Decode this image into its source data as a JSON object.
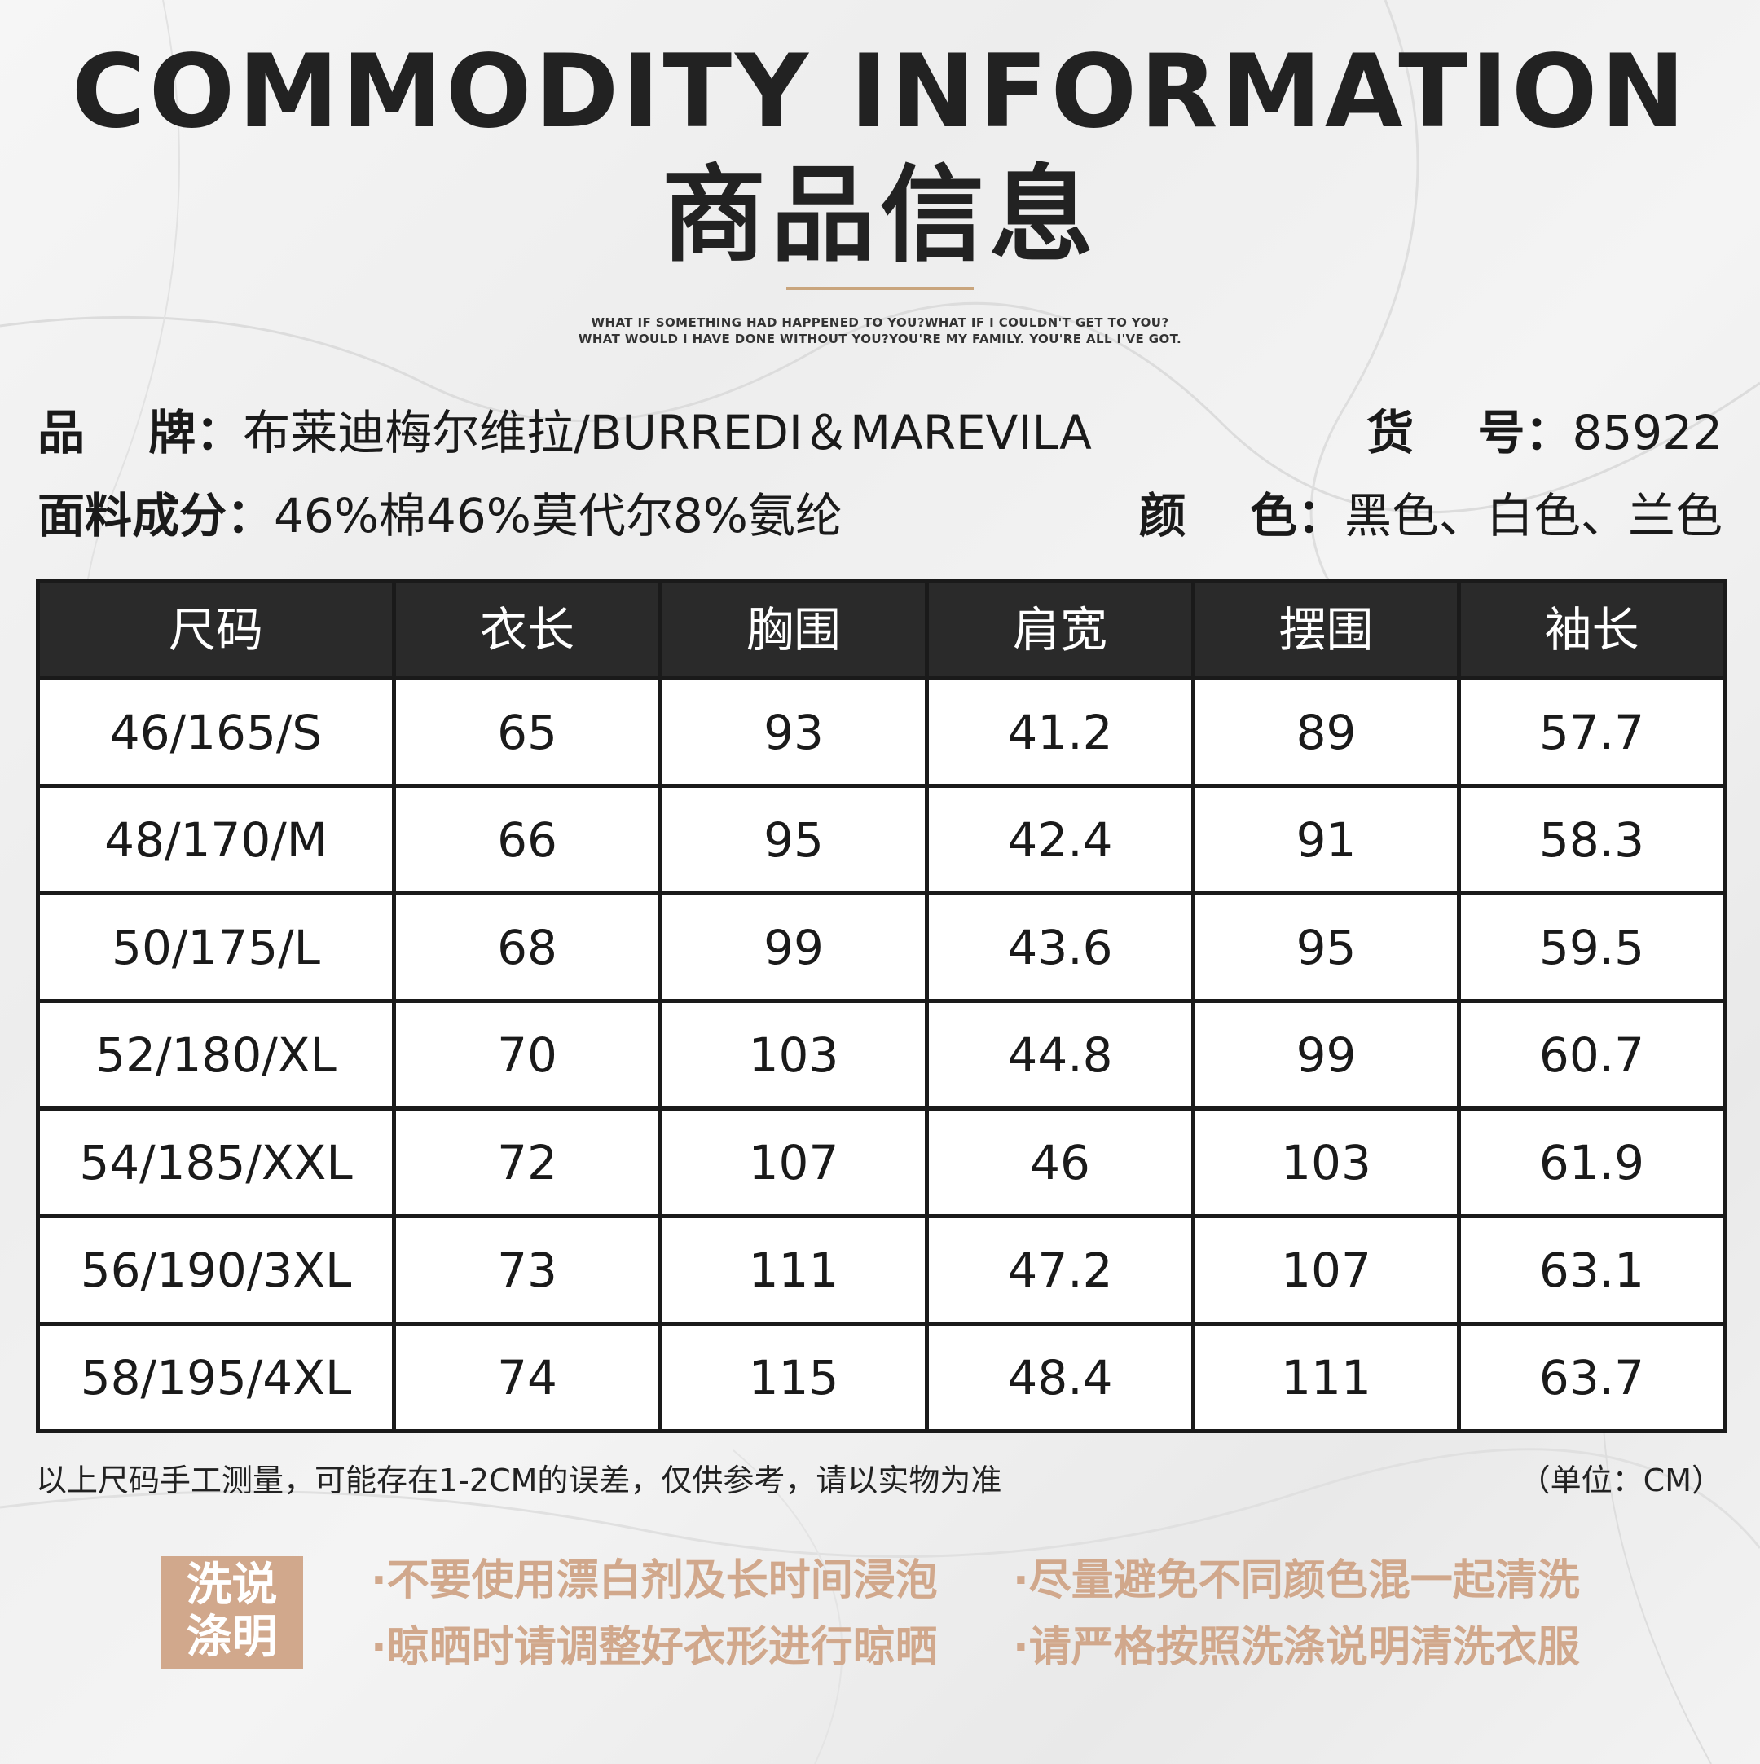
{
  "header": {
    "title_en": "COMMODITY INFORMATION",
    "title_cn": "商品信息",
    "quote_line1": "WHAT IF SOMETHING HAD HAPPENED TO YOU?WHAT IF I COULDN'T GET TO YOU?",
    "quote_line2": "WHAT WOULD I HAVE DONE WITHOUT YOU?YOU'RE MY FAMILY. YOU'RE ALL I'VE GOT."
  },
  "info": {
    "brand_label": "品　 牌：",
    "brand_value": "布莱迪梅尔维拉/BURREDI＆MAREVILA",
    "item_label": "货　 号：",
    "item_value": "85922",
    "fabric_label": "面料成分：",
    "fabric_value": "46%棉46%莫代尔8%氨纶",
    "color_label": "颜　 色：",
    "color_value": "黑色、白色、兰色"
  },
  "table": {
    "headers": [
      "尺码",
      "衣长",
      "胸围",
      "肩宽",
      "摆围",
      "袖长"
    ],
    "rows": [
      [
        "46/165/S",
        "65",
        "93",
        "41.2",
        "89",
        "57.7"
      ],
      [
        "48/170/M",
        "66",
        "95",
        "42.4",
        "91",
        "58.3"
      ],
      [
        "50/175/L",
        "68",
        "99",
        "43.6",
        "95",
        "59.5"
      ],
      [
        "52/180/XL",
        "70",
        "103",
        "44.8",
        "99",
        "60.7"
      ],
      [
        "54/185/XXL",
        "72",
        "107",
        "46",
        "103",
        "61.9"
      ],
      [
        "56/190/3XL",
        "73",
        "111",
        "47.2",
        "107",
        "63.1"
      ],
      [
        "58/195/4XL",
        "74",
        "115",
        "48.4",
        "111",
        "63.7"
      ]
    ]
  },
  "notes": {
    "measure_note": "以上尺码手工测量，可能存在1-2CM的误差，仅供参考，请以实物为准",
    "unit": "（单位：CM）"
  },
  "wash": {
    "box_line1": "洗说",
    "box_line2": "涤明",
    "items": [
      "·不要使用漂白剂及长时间浸泡",
      "·尽量避免不同颜色混一起清洗",
      "·晾晒时请调整好衣形进行晾晒",
      "·请严格按照洗涤说明清洗衣服"
    ]
  },
  "colors": {
    "accent_gold": "#c9a57d",
    "wash_accent": "#d1a88c",
    "header_bg": "#2a2a2a"
  }
}
